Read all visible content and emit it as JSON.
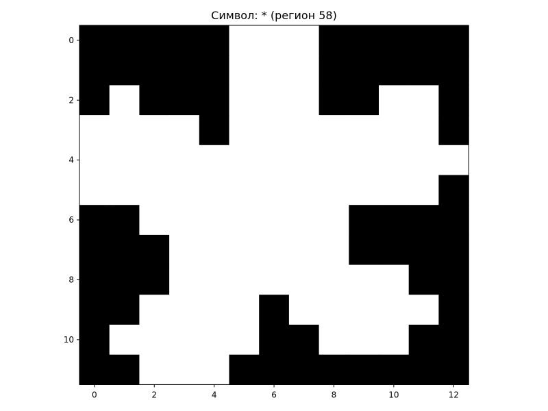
{
  "chart_data": {
    "type": "heatmap",
    "title": "Символ: * (регион 58)",
    "xlabel": "",
    "ylabel": "",
    "colormap": {
      "0": "#000000",
      "1": "#ffffff"
    },
    "x_ticks": [
      0,
      2,
      4,
      6,
      8,
      10,
      12
    ],
    "y_ticks": [
      0,
      2,
      4,
      6,
      8,
      10
    ],
    "grid": false,
    "matrix": [
      [
        0,
        0,
        0,
        0,
        0,
        1,
        1,
        1,
        0,
        0,
        0,
        0,
        0
      ],
      [
        0,
        0,
        0,
        0,
        0,
        1,
        1,
        1,
        0,
        0,
        0,
        0,
        0
      ],
      [
        0,
        1,
        0,
        0,
        0,
        1,
        1,
        1,
        0,
        0,
        1,
        1,
        0
      ],
      [
        1,
        1,
        1,
        1,
        0,
        1,
        1,
        1,
        1,
        1,
        1,
        1,
        0
      ],
      [
        1,
        1,
        1,
        1,
        1,
        1,
        1,
        1,
        1,
        1,
        1,
        1,
        1
      ],
      [
        1,
        1,
        1,
        1,
        1,
        1,
        1,
        1,
        1,
        1,
        1,
        1,
        0
      ],
      [
        0,
        0,
        1,
        1,
        1,
        1,
        1,
        1,
        1,
        0,
        0,
        0,
        0
      ],
      [
        0,
        0,
        0,
        1,
        1,
        1,
        1,
        1,
        1,
        0,
        0,
        0,
        0
      ],
      [
        0,
        0,
        0,
        1,
        1,
        1,
        1,
        1,
        1,
        1,
        1,
        0,
        0
      ],
      [
        0,
        0,
        1,
        1,
        1,
        1,
        0,
        1,
        1,
        1,
        1,
        1,
        0
      ],
      [
        0,
        1,
        1,
        1,
        1,
        1,
        0,
        0,
        1,
        1,
        1,
        0,
        0
      ],
      [
        0,
        0,
        1,
        1,
        1,
        0,
        0,
        0,
        0,
        0,
        0,
        0,
        0
      ]
    ]
  }
}
